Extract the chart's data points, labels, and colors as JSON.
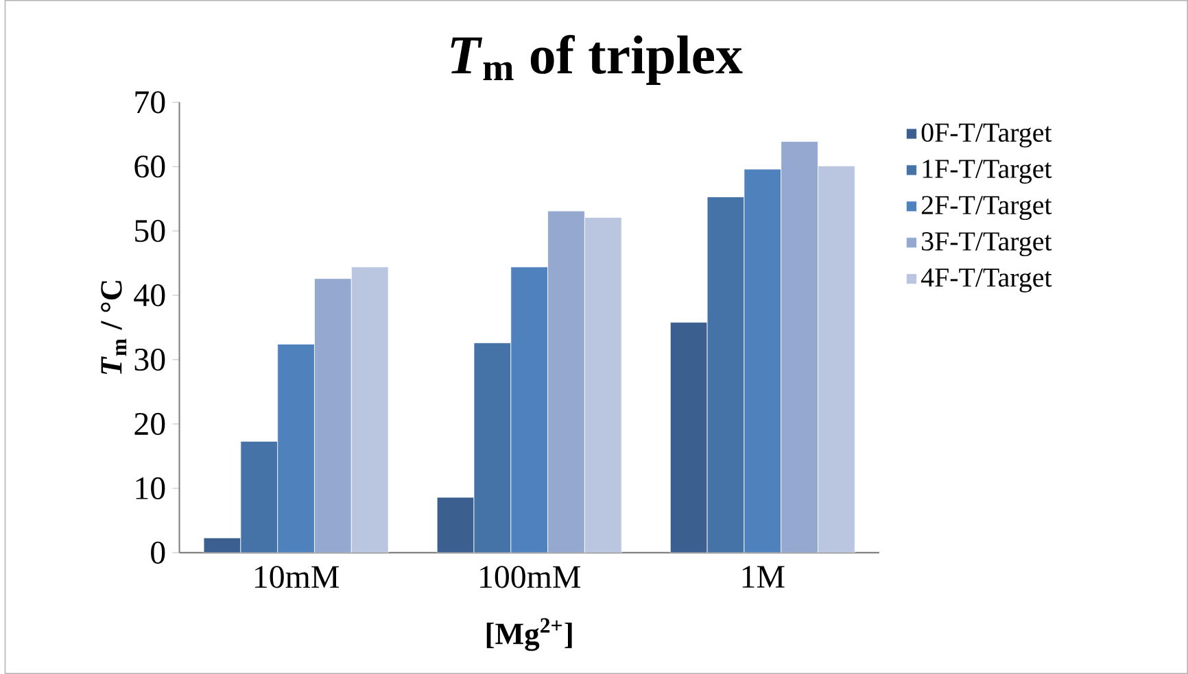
{
  "chart_data": {
    "type": "bar",
    "title": "*T*$_{m}$ of triplex",
    "xlabel": "[Mg$^{2+}$]",
    "ylabel": "*T*$_{m}$ / °C",
    "categories": [
      "10mM",
      "100mM",
      "1M"
    ],
    "series": [
      {
        "name": "0F-T/Target",
        "color": "#3b5f8f",
        "values": [
          2.3,
          8.6,
          35.8
        ]
      },
      {
        "name": "1F-T/Target",
        "color": "#4572a7",
        "values": [
          17.3,
          32.6,
          55.3
        ]
      },
      {
        "name": "2F-T/Target",
        "color": "#4f81bd",
        "values": [
          32.4,
          44.4,
          59.6
        ]
      },
      {
        "name": "3F-T/Target",
        "color": "#95a9d0",
        "values": [
          42.6,
          53.1,
          63.9
        ]
      },
      {
        "name": "4F-T/Target",
        "color": "#bac6e0",
        "values": [
          44.4,
          52.1,
          60.1
        ]
      }
    ],
    "ylim": [
      0,
      70
    ],
    "yticks": [
      0,
      10,
      20,
      30,
      40,
      50,
      60,
      70
    ],
    "legend": "right",
    "grid": false
  }
}
